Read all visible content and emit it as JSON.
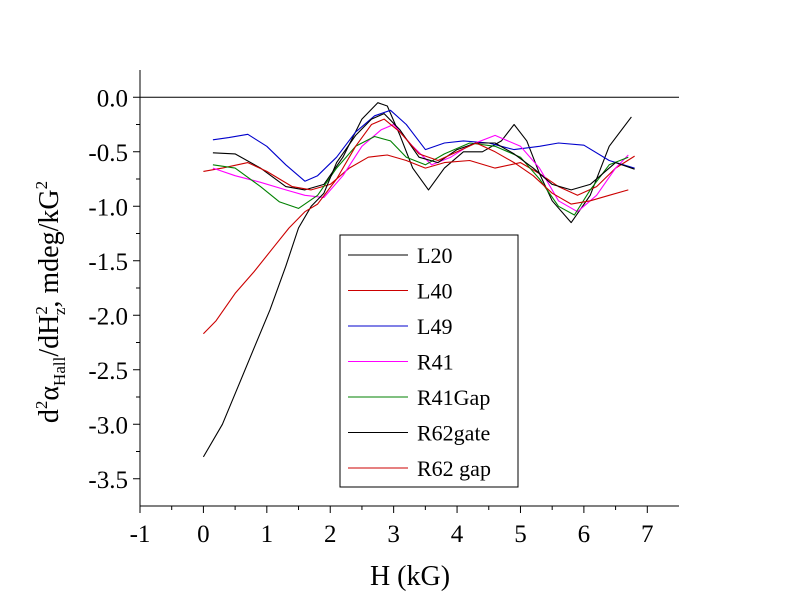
{
  "chart_data": {
    "type": "line",
    "title": "",
    "xlabel": "H (kG)",
    "ylabel": "d²α_Hall/dH_z², mdeg/kG²",
    "ylabel_parts": {
      "d": "d",
      "sup2a": "2",
      "alpha": "α",
      "sub_hall": "Hall",
      "slash_dh": "/dH",
      "sup2b": "2",
      "sub_z": "z",
      "unit": ", mdeg/kG",
      "sup2c": "2"
    },
    "xlim": [
      -1,
      7.5
    ],
    "ylim": [
      -3.75,
      0.25
    ],
    "x_ticks": [
      "-1",
      "0",
      "1",
      "2",
      "3",
      "4",
      "5",
      "6",
      "7"
    ],
    "y_ticks": [
      "0.0",
      "-0.5",
      "-1.0",
      "-1.5",
      "-2.0",
      "-2.5",
      "-3.0",
      "-3.5"
    ],
    "zero_line": 0,
    "grid": false,
    "legend_position": "center",
    "series": [
      {
        "name": "L20",
        "color": "#000000",
        "points": [
          [
            0.15,
            -0.51
          ],
          [
            0.5,
            -0.52
          ],
          [
            0.9,
            -0.65
          ],
          [
            1.3,
            -0.82
          ],
          [
            1.6,
            -0.85
          ],
          [
            1.9,
            -0.8
          ],
          [
            2.2,
            -0.55
          ],
          [
            2.5,
            -0.2
          ],
          [
            2.75,
            -0.05
          ],
          [
            2.9,
            -0.08
          ],
          [
            3.1,
            -0.35
          ],
          [
            3.3,
            -0.65
          ],
          [
            3.55,
            -0.85
          ],
          [
            3.8,
            -0.65
          ],
          [
            4.1,
            -0.5
          ],
          [
            4.4,
            -0.5
          ],
          [
            4.7,
            -0.4
          ],
          [
            4.9,
            -0.25
          ],
          [
            5.1,
            -0.4
          ],
          [
            5.3,
            -0.7
          ],
          [
            5.5,
            -0.95
          ],
          [
            5.8,
            -1.15
          ],
          [
            6.1,
            -0.9
          ],
          [
            6.4,
            -0.45
          ],
          [
            6.75,
            -0.18
          ]
        ]
      },
      {
        "name": "L40",
        "color": "#cc0000",
        "points": [
          [
            0.0,
            -0.68
          ],
          [
            0.3,
            -0.65
          ],
          [
            0.7,
            -0.6
          ],
          [
            1.0,
            -0.68
          ],
          [
            1.4,
            -0.82
          ],
          [
            1.7,
            -0.85
          ],
          [
            2.0,
            -0.8
          ],
          [
            2.3,
            -0.65
          ],
          [
            2.6,
            -0.55
          ],
          [
            2.9,
            -0.53
          ],
          [
            3.2,
            -0.58
          ],
          [
            3.5,
            -0.65
          ],
          [
            3.8,
            -0.6
          ],
          [
            4.2,
            -0.58
          ],
          [
            4.6,
            -0.65
          ],
          [
            5.0,
            -0.6
          ],
          [
            5.3,
            -0.7
          ],
          [
            5.6,
            -0.82
          ],
          [
            5.9,
            -0.9
          ],
          [
            6.2,
            -0.82
          ],
          [
            6.5,
            -0.65
          ],
          [
            6.8,
            -0.54
          ]
        ]
      },
      {
        "name": "L49",
        "color": "#0000cc",
        "points": [
          [
            0.15,
            -0.39
          ],
          [
            0.4,
            -0.37
          ],
          [
            0.7,
            -0.34
          ],
          [
            1.0,
            -0.45
          ],
          [
            1.3,
            -0.62
          ],
          [
            1.6,
            -0.77
          ],
          [
            1.8,
            -0.72
          ],
          [
            2.1,
            -0.55
          ],
          [
            2.4,
            -0.32
          ],
          [
            2.7,
            -0.17
          ],
          [
            2.95,
            -0.12
          ],
          [
            3.2,
            -0.25
          ],
          [
            3.5,
            -0.48
          ],
          [
            3.8,
            -0.42
          ],
          [
            4.1,
            -0.4
          ],
          [
            4.5,
            -0.42
          ],
          [
            4.9,
            -0.48
          ],
          [
            5.3,
            -0.45
          ],
          [
            5.6,
            -0.42
          ],
          [
            6.0,
            -0.44
          ],
          [
            6.4,
            -0.58
          ],
          [
            6.8,
            -0.65
          ]
        ]
      },
      {
        "name": "R41",
        "color": "#ff00ff",
        "points": [
          [
            0.15,
            -0.65
          ],
          [
            0.5,
            -0.72
          ],
          [
            0.9,
            -0.78
          ],
          [
            1.3,
            -0.85
          ],
          [
            1.6,
            -0.9
          ],
          [
            1.9,
            -0.92
          ],
          [
            2.2,
            -0.72
          ],
          [
            2.5,
            -0.45
          ],
          [
            2.8,
            -0.3
          ],
          [
            3.0,
            -0.25
          ],
          [
            3.3,
            -0.45
          ],
          [
            3.6,
            -0.62
          ],
          [
            3.9,
            -0.55
          ],
          [
            4.2,
            -0.44
          ],
          [
            4.6,
            -0.35
          ],
          [
            5.0,
            -0.45
          ],
          [
            5.3,
            -0.65
          ],
          [
            5.6,
            -0.95
          ],
          [
            5.9,
            -1.05
          ],
          [
            6.2,
            -0.9
          ],
          [
            6.5,
            -0.65
          ],
          [
            6.7,
            -0.53
          ]
        ]
      },
      {
        "name": "R41Gap",
        "color": "#008000",
        "points": [
          [
            0.15,
            -0.62
          ],
          [
            0.5,
            -0.65
          ],
          [
            0.9,
            -0.82
          ],
          [
            1.2,
            -0.96
          ],
          [
            1.5,
            -1.02
          ],
          [
            1.8,
            -0.9
          ],
          [
            2.1,
            -0.65
          ],
          [
            2.4,
            -0.45
          ],
          [
            2.7,
            -0.36
          ],
          [
            2.95,
            -0.4
          ],
          [
            3.2,
            -0.55
          ],
          [
            3.5,
            -0.62
          ],
          [
            3.8,
            -0.52
          ],
          [
            4.2,
            -0.42
          ],
          [
            4.6,
            -0.45
          ],
          [
            5.0,
            -0.55
          ],
          [
            5.3,
            -0.75
          ],
          [
            5.6,
            -1.0
          ],
          [
            5.85,
            -1.08
          ],
          [
            6.1,
            -0.85
          ],
          [
            6.4,
            -0.62
          ],
          [
            6.7,
            -0.55
          ]
        ]
      },
      {
        "name": "R62gate",
        "color": "#000000",
        "points": [
          [
            0.0,
            -3.3
          ],
          [
            0.3,
            -3.0
          ],
          [
            0.55,
            -2.65
          ],
          [
            0.8,
            -2.3
          ],
          [
            1.05,
            -1.95
          ],
          [
            1.3,
            -1.55
          ],
          [
            1.5,
            -1.2
          ],
          [
            1.7,
            -1.0
          ],
          [
            1.9,
            -0.88
          ],
          [
            2.1,
            -0.6
          ],
          [
            2.4,
            -0.35
          ],
          [
            2.65,
            -0.2
          ],
          [
            2.85,
            -0.15
          ],
          [
            3.1,
            -0.3
          ],
          [
            3.4,
            -0.55
          ],
          [
            3.7,
            -0.6
          ],
          [
            4.0,
            -0.48
          ],
          [
            4.3,
            -0.42
          ],
          [
            4.6,
            -0.42
          ],
          [
            4.9,
            -0.52
          ],
          [
            5.2,
            -0.65
          ],
          [
            5.5,
            -0.8
          ],
          [
            5.8,
            -0.85
          ],
          [
            6.1,
            -0.8
          ],
          [
            6.5,
            -0.6
          ],
          [
            6.8,
            -0.66
          ]
        ]
      },
      {
        "name": "R62 gap",
        "color": "#cc0000",
        "points": [
          [
            0.0,
            -2.17
          ],
          [
            0.2,
            -2.05
          ],
          [
            0.5,
            -1.8
          ],
          [
            0.8,
            -1.6
          ],
          [
            1.1,
            -1.38
          ],
          [
            1.35,
            -1.2
          ],
          [
            1.6,
            -1.05
          ],
          [
            1.8,
            -0.98
          ],
          [
            2.1,
            -0.75
          ],
          [
            2.4,
            -0.45
          ],
          [
            2.65,
            -0.25
          ],
          [
            2.85,
            -0.2
          ],
          [
            3.1,
            -0.32
          ],
          [
            3.4,
            -0.52
          ],
          [
            3.7,
            -0.58
          ],
          [
            4.0,
            -0.5
          ],
          [
            4.3,
            -0.42
          ],
          [
            4.6,
            -0.5
          ],
          [
            4.9,
            -0.6
          ],
          [
            5.2,
            -0.72
          ],
          [
            5.5,
            -0.88
          ],
          [
            5.8,
            -0.98
          ],
          [
            6.1,
            -0.95
          ],
          [
            6.4,
            -0.9
          ],
          [
            6.7,
            -0.85
          ]
        ]
      }
    ]
  }
}
